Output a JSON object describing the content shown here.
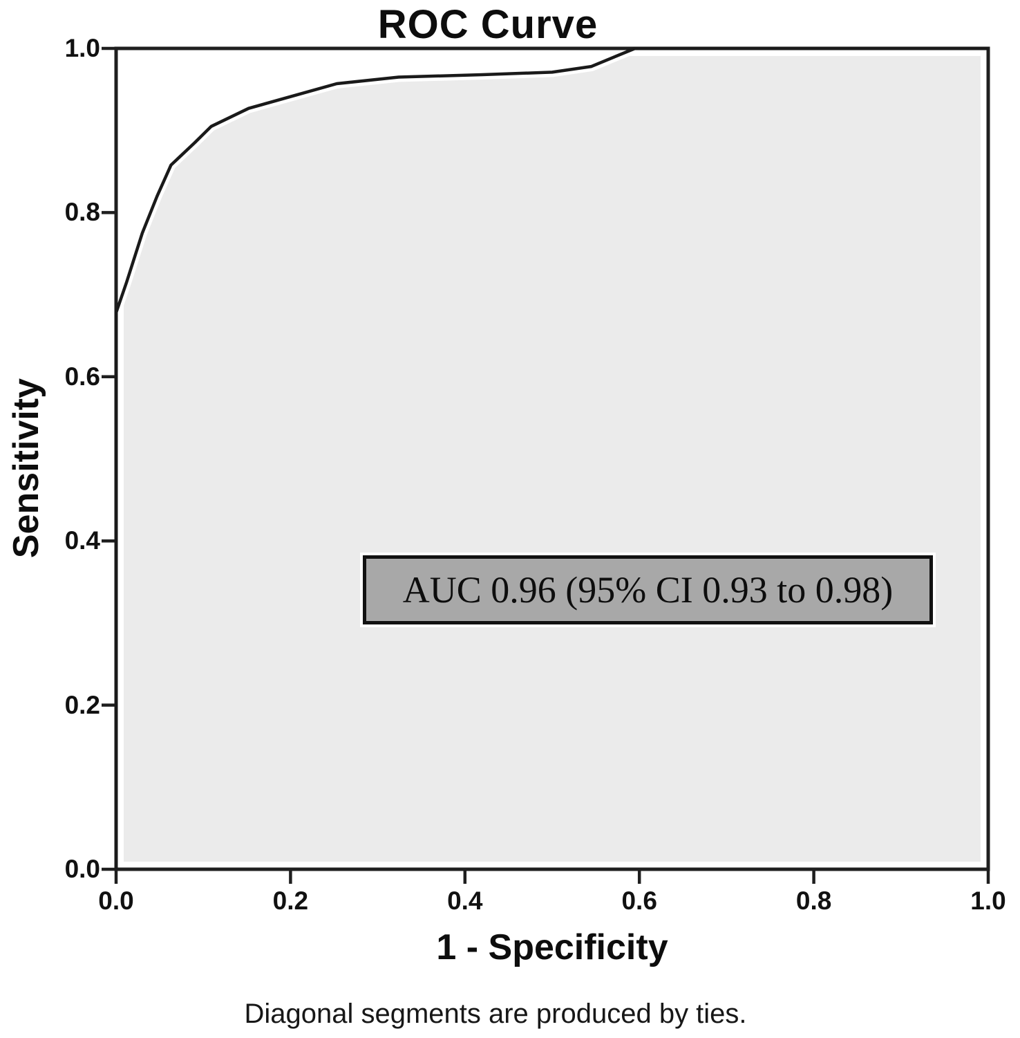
{
  "figure": {
    "title": "ROC Curve",
    "footnote": "Diagonal segments are produced by ties."
  },
  "chart_data": {
    "type": "line",
    "title": "ROC Curve",
    "xlabel": "1 - Specificity",
    "ylabel": "Sensitivity",
    "xlim": [
      0.0,
      1.0
    ],
    "ylim": [
      0.0,
      1.0
    ],
    "x_ticks": [
      "0.0",
      "0.2",
      "0.4",
      "0.6",
      "0.8",
      "1.0"
    ],
    "y_ticks": [
      "0.0",
      "0.2",
      "0.4",
      "0.6",
      "0.8",
      "1.0"
    ],
    "grid": false,
    "legend_position": "none",
    "series": [
      {
        "name": "ROC curve",
        "points": [
          [
            0.0,
            0.0
          ],
          [
            0.0,
            0.678
          ],
          [
            0.012,
            0.715
          ],
          [
            0.03,
            0.775
          ],
          [
            0.047,
            0.82
          ],
          [
            0.063,
            0.858
          ],
          [
            0.09,
            0.885
          ],
          [
            0.109,
            0.905
          ],
          [
            0.152,
            0.927
          ],
          [
            0.253,
            0.957
          ],
          [
            0.324,
            0.965
          ],
          [
            0.42,
            0.968
          ],
          [
            0.5,
            0.971
          ],
          [
            0.545,
            0.978
          ],
          [
            0.595,
            1.0
          ],
          [
            1.0,
            1.0
          ]
        ]
      }
    ],
    "area_fill": "under_curve",
    "annotation": {
      "text": "AUC 0.96 (95% CI 0.93 to 0.98)",
      "auc": 0.96,
      "ci_level": "95%",
      "ci_low": 0.93,
      "ci_high": 0.98
    }
  },
  "colors": {
    "curve": "#1a1a1a",
    "curve_halo": "#ffffff",
    "area_fill": "#ebebeb",
    "frame": "#1f1f1f",
    "annotation_fill": "#a8a8a8",
    "annotation_border": "#111111",
    "background": "#ffffff",
    "text": "#0d0d0d"
  }
}
